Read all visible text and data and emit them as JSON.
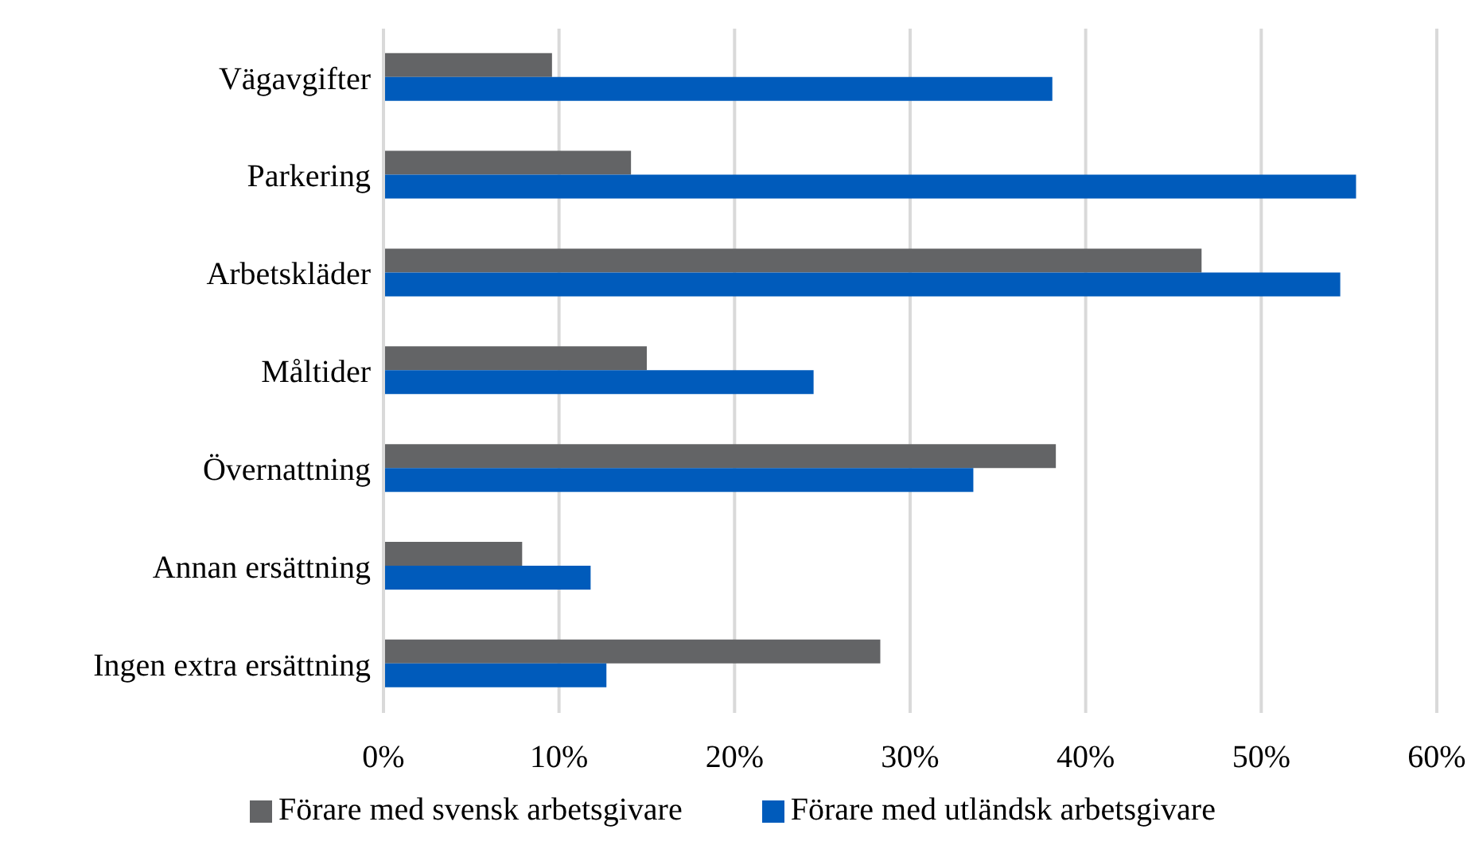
{
  "chart_data": {
    "type": "bar",
    "orientation": "horizontal",
    "categories": [
      "Vägavgifter",
      "Parkering",
      "Arbetskläder",
      "Måltider",
      "Övernattning",
      "Annan ersättning",
      "Ingen extra ersättning"
    ],
    "series": [
      {
        "name": "Förare med svensk arbetsgivare",
        "color": "#636466",
        "values": [
          9.6,
          14.1,
          46.6,
          15.0,
          38.3,
          7.9,
          28.3
        ]
      },
      {
        "name": "Förare med utländsk arbetsgivare",
        "color": "#005bbb",
        "values": [
          38.1,
          55.4,
          54.5,
          24.5,
          33.6,
          11.8,
          12.7
        ]
      }
    ],
    "xlim": [
      0,
      60
    ],
    "xticks": [
      {
        "value": 0,
        "label": "0%"
      },
      {
        "value": 10,
        "label": "10%"
      },
      {
        "value": 20,
        "label": "20%"
      },
      {
        "value": 30,
        "label": "30%"
      },
      {
        "value": 40,
        "label": "40%"
      },
      {
        "value": 50,
        "label": "50%"
      },
      {
        "value": 60,
        "label": "60%"
      }
    ],
    "grid": "x",
    "legend": "bottom"
  }
}
